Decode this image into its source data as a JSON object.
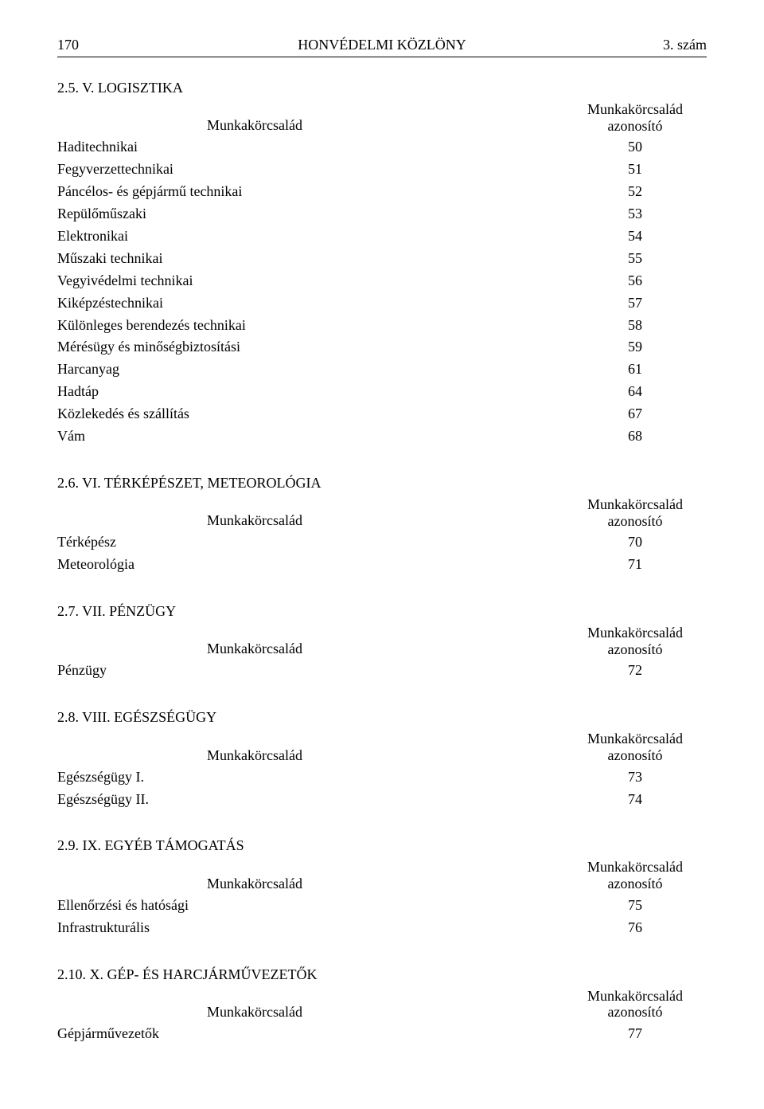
{
  "header": {
    "page_number": "170",
    "center": "HONVÉDELMI KÖZLÖNY",
    "issue": "3. szám"
  },
  "labels": {
    "col_name": "Munkakörcsalád",
    "col_id_line1": "Munkakörcsalád",
    "col_id_line2": "azonosító"
  },
  "sections": [
    {
      "title": "2.5. V. LOGISZTIKA",
      "rows": [
        {
          "name": "Haditechnikai",
          "id": "50"
        },
        {
          "name": "Fegyverzettechnikai",
          "id": "51"
        },
        {
          "name": "Páncélos- és gépjármű technikai",
          "id": "52"
        },
        {
          "name": "Repülőműszaki",
          "id": "53"
        },
        {
          "name": "Elektronikai",
          "id": "54"
        },
        {
          "name": "Műszaki technikai",
          "id": "55"
        },
        {
          "name": "Vegyivédelmi technikai",
          "id": "56"
        },
        {
          "name": "Kiképzéstechnikai",
          "id": "57"
        },
        {
          "name": "Különleges berendezés technikai",
          "id": "58"
        },
        {
          "name": "Mérésügy és minőségbiztosítási",
          "id": "59"
        },
        {
          "name": "Harcanyag",
          "id": "61"
        },
        {
          "name": "Hadtáp",
          "id": "64"
        },
        {
          "name": "Közlekedés és szállítás",
          "id": "67"
        },
        {
          "name": "Vám",
          "id": "68"
        }
      ]
    },
    {
      "title": "2.6. VI. TÉRKÉPÉSZET, METEOROLÓGIA",
      "rows": [
        {
          "name": "Térképész",
          "id": "70"
        },
        {
          "name": "Meteorológia",
          "id": "71"
        }
      ]
    },
    {
      "title": "2.7. VII. PÉNZÜGY",
      "rows": [
        {
          "name": "Pénzügy",
          "id": "72"
        }
      ]
    },
    {
      "title": "2.8. VIII. EGÉSZSÉGÜGY",
      "rows": [
        {
          "name": "Egészségügy I.",
          "id": "73"
        },
        {
          "name": "Egészségügy II.",
          "id": "74"
        }
      ]
    },
    {
      "title": "2.9. IX. EGYÉB TÁMOGATÁS",
      "rows": [
        {
          "name": "Ellenőrzési és hatósági",
          "id": "75"
        },
        {
          "name": "Infrastrukturális",
          "id": "76"
        }
      ]
    },
    {
      "title": "2.10. X. GÉP- ÉS HARCJÁRMŰVEZETŐK",
      "rows": [
        {
          "name": "Gépjárművezetők",
          "id": "77"
        }
      ]
    }
  ]
}
